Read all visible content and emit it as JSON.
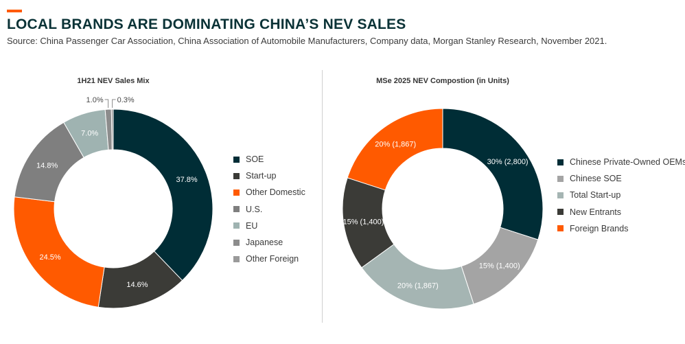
{
  "header": {
    "title": "LOCAL BRANDS ARE DOMINATING CHINA’S NEV SALES",
    "source": "Source: China Passenger Car Association, China Association of Automobile Manufacturers, Company data, Morgan Stanley Research, November 2021.",
    "accent_color": "#ff5a00"
  },
  "chart_data": [
    {
      "type": "pie",
      "donut": true,
      "title": "1H21 NEV Sales Mix",
      "legend_position": "right",
      "categories": [
        "SOE",
        "Start-up",
        "Other Domestic",
        "U.S.",
        "EU",
        "Japanese",
        "Other Foreign"
      ],
      "values": [
        37.8,
        14.6,
        24.5,
        14.8,
        7.0,
        1.0,
        0.3
      ],
      "labels": [
        "37.8%",
        "14.6%",
        "24.5%",
        "14.8%",
        "7.0%",
        "1.0%",
        "0.3%"
      ],
      "colors": [
        "#002d36",
        "#3b3b37",
        "#ff5a00",
        "#7f7f7f",
        "#9fb3b1",
        "#8c8c8c",
        "#9a9a9a"
      ]
    },
    {
      "type": "pie",
      "donut": true,
      "title": "MSe 2025 NEV Compostion (in Units)",
      "legend_position": "right",
      "categories": [
        "Chinese Private-Owned OEMs",
        "Chinese SOE",
        "Total Start-up",
        "New Entrants",
        "Foreign Brands"
      ],
      "values": [
        30,
        15,
        20,
        15,
        20
      ],
      "units": [
        2800,
        1400,
        1867,
        1400,
        1867
      ],
      "labels": [
        "30% (2,800)",
        "15% (1,400)",
        "20% (1,867)",
        "15% (1,400)",
        "20% (1,867)"
      ],
      "colors": [
        "#002d36",
        "#a4a4a4",
        "#a5b5b3",
        "#3b3b37",
        "#ff5a00"
      ]
    }
  ]
}
